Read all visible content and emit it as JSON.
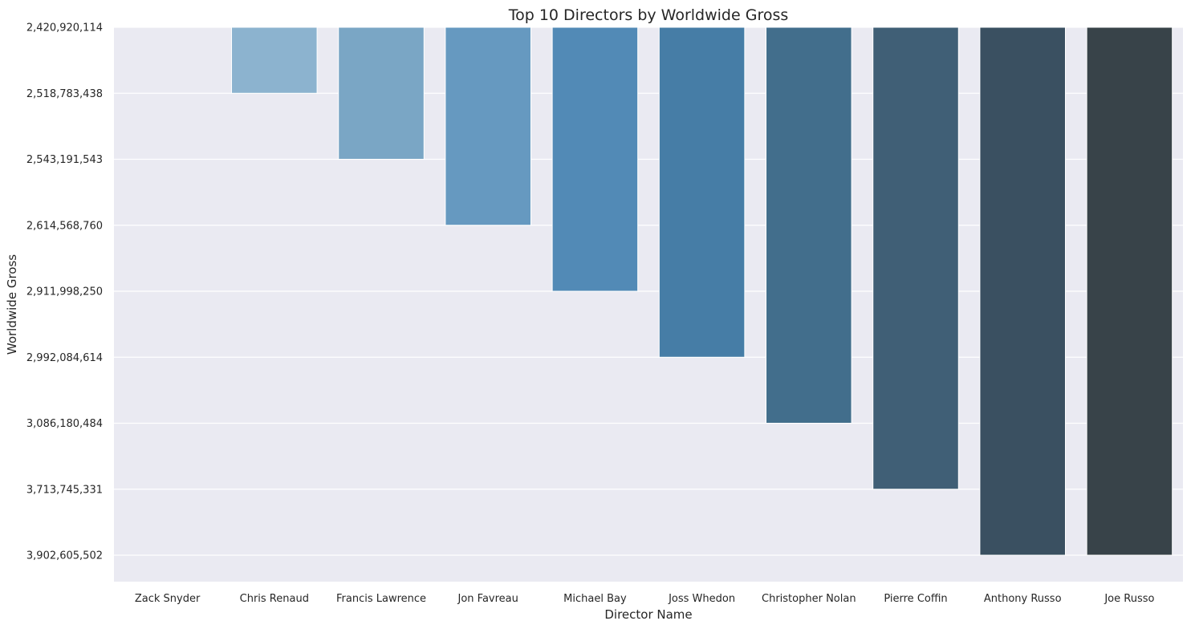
{
  "chart_data": {
    "type": "bar",
    "title": "Top 10 Directors by Worldwide Gross",
    "xlabel": "Director Name",
    "ylabel": "Worldwide Gross",
    "y_axis_categorical": true,
    "y_ticks": [
      "2,420,920,114",
      "2,518,783,438",
      "2,543,191,543",
      "2,614,568,760",
      "2,911,998,250",
      "2,992,084,614",
      "3,086,180,484",
      "3,713,745,331",
      "3,902,605,502"
    ],
    "categories": [
      "Zack Snyder",
      "Chris Renaud",
      "Francis Lawrence",
      "Jon Favreau",
      "Michael Bay",
      "Joss Whedon",
      "Christopher Nolan",
      "Pierre Coffin",
      "Anthony Russo",
      "Joe Russo"
    ],
    "values": [
      2420920114,
      2518783438,
      2543191543,
      2614568760,
      2911998250,
      2992084614,
      3086180484,
      3713745331,
      3902605502,
      3902605502
    ],
    "colors": [
      "#a3c4dc",
      "#8cb3cf",
      "#7aa6c5",
      "#6699c0",
      "#528ab6",
      "#467da6",
      "#426e8c",
      "#405f76",
      "#3a5061",
      "#384349"
    ],
    "grid": true,
    "background": "#eaeaf2"
  }
}
